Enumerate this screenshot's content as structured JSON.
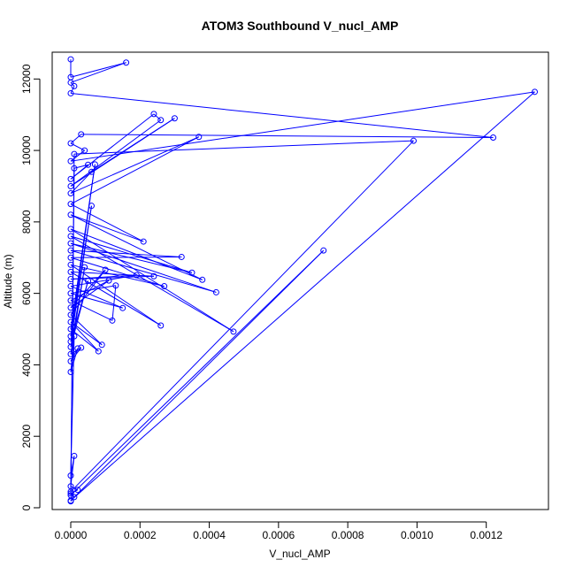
{
  "chart_data": {
    "type": "line",
    "title": "ATOM3 Southbound V_nucl_AMP",
    "xlabel": "V_nucl_AMP",
    "ylabel": "Altitude (m)",
    "xlim": [
      -5.36e-05,
      0.0013796
    ],
    "ylim": [
      -50,
      12750
    ],
    "x_ticks": [
      0,
      0.0002,
      0.0004,
      0.0006,
      0.0008,
      0.001,
      0.0012
    ],
    "x_tick_labels": [
      "0.0000",
      "0.0002",
      "0.0004",
      "0.0006",
      "0.0008",
      "0.0010",
      "0.0012"
    ],
    "y_ticks": [
      0,
      2000,
      4000,
      6000,
      8000,
      10000,
      12000
    ],
    "y_tick_labels": [
      "0",
      "2000",
      "4000",
      "6000",
      "8000",
      "10000",
      "12000"
    ],
    "grid": false,
    "legend": "none",
    "marker": "open-circle",
    "color": "#0000ff",
    "series": [
      {
        "x": [
          0.0,
          0.0,
          0.00016,
          0.0,
          1e-05,
          0.0,
          0.00122,
          3e-05,
          0.0,
          4e-05,
          0.0,
          0.00134,
          0.0,
          0.00073,
          0.0,
          1e-05,
          0.00099,
          0.0,
          1e-05,
          5e-05,
          0.0,
          0.00024,
          0.00026,
          0.0,
          0.0003,
          6e-05,
          0.0,
          0.00037,
          0.0,
          0.00021,
          0.0,
          0.00038,
          0.0,
          0.00047,
          0.0,
          0.00035,
          0.0,
          0.00042,
          0.0,
          0.00032,
          0.0,
          0.00027,
          0.0,
          0.00026,
          0.0,
          0.00024,
          0.0,
          0.00019,
          0.0,
          0.00015,
          0.0,
          0.00013,
          0.00012,
          0.0,
          0.00011,
          0.0,
          0.0001,
          0.0,
          9e-05,
          0.0,
          8e-05,
          0.0,
          7e-05,
          0.0,
          6e-05,
          0.0,
          5e-05,
          0.0,
          4e-05,
          0.0,
          3e-05,
          0.0,
          2e-05,
          0.0,
          1e-05,
          0.0,
          1e-05,
          0.0,
          2e-05,
          0.0,
          1e-05,
          0.0
        ],
        "y": [
          12550,
          12050,
          12460,
          11900,
          11800,
          11600,
          10360,
          10450,
          10200,
          10000,
          9700,
          11640,
          200,
          7200,
          350,
          9900,
          10270,
          450,
          9500,
          9600,
          9200,
          11020,
          10850,
          9000,
          10900,
          9400,
          8800,
          10380,
          8500,
          7450,
          8200,
          6380,
          7800,
          4930,
          7600,
          6580,
          7400,
          6030,
          7200,
          7020,
          7000,
          6200,
          6800,
          5100,
          6600,
          6480,
          6400,
          6510,
          6200,
          5590,
          6000,
          6220,
          5240,
          5800,
          6360,
          5600,
          6660,
          5400,
          4560,
          5200,
          4380,
          5000,
          9610,
          4800,
          8450,
          4650,
          6350,
          4500,
          6730,
          4300,
          4480,
          4100,
          4460,
          3800,
          4800,
          900,
          1450,
          600,
          500,
          400,
          300,
          180
        ]
      }
    ]
  }
}
